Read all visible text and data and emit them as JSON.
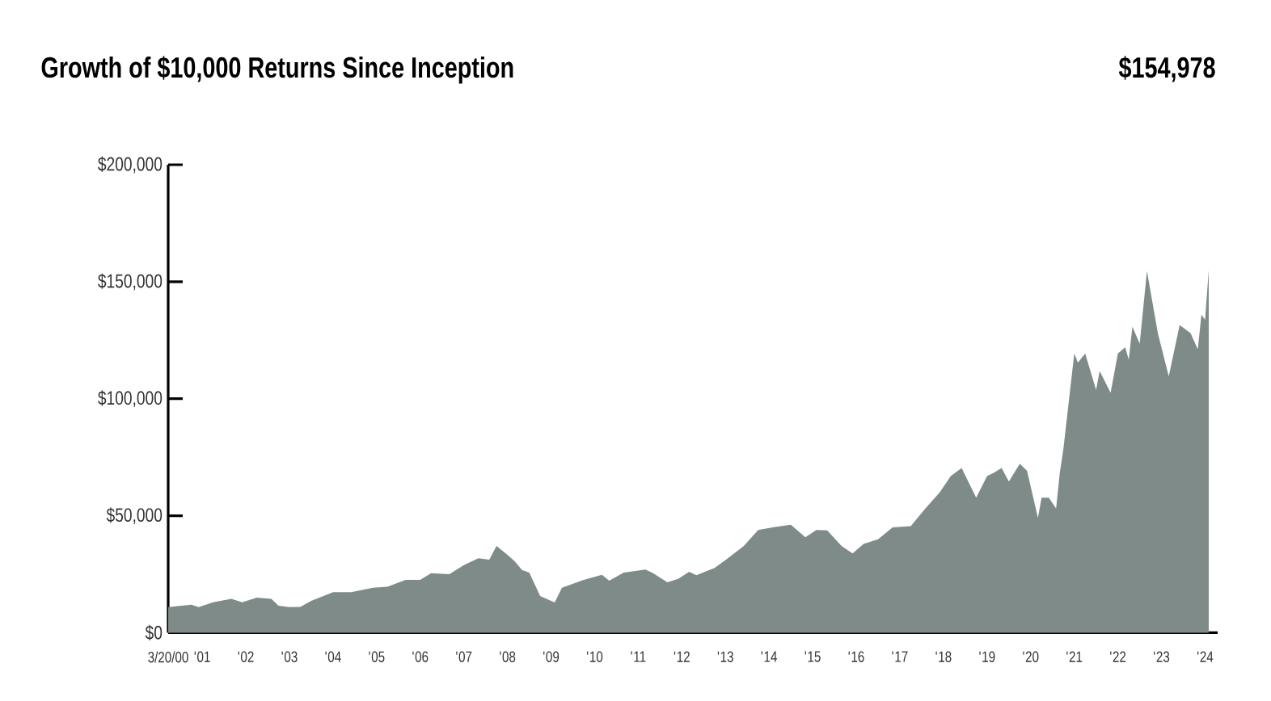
{
  "chart_data": {
    "type": "area",
    "title": "Growth of $10,000 Returns Since Inception",
    "annotations": [
      "$154,978"
    ],
    "x": [
      "2000-03-20",
      "2000-10",
      "2000-12",
      "2001-04",
      "2001-09",
      "2001-12",
      "2002-04",
      "2002-08",
      "2002-10",
      "2003-01",
      "2003-04",
      "2003-07",
      "2004-01",
      "2004-06",
      "2004-12",
      "2005-04",
      "2005-09",
      "2006-01",
      "2006-04",
      "2006-09",
      "2007-01",
      "2007-05",
      "2007-08",
      "2007-10",
      "2008-01",
      "2008-03",
      "2008-05",
      "2008-07",
      "2008-10",
      "2009-02",
      "2009-04",
      "2009-10",
      "2010-03",
      "2010-05",
      "2010-09",
      "2011-03",
      "2011-05",
      "2011-09",
      "2011-12",
      "2012-03",
      "2012-05",
      "2012-10",
      "2013-01",
      "2013-06",
      "2013-10",
      "2014-02",
      "2014-07",
      "2014-11",
      "2015-02",
      "2015-05",
      "2015-09",
      "2015-12",
      "2016-03",
      "2016-07",
      "2016-11",
      "2017-04",
      "2017-08",
      "2017-12",
      "2018-03",
      "2018-06",
      "2018-10",
      "2019-01",
      "2019-03",
      "2019-05",
      "2019-07",
      "2019-10",
      "2019-12",
      "2020-03",
      "2020-04",
      "2020-06",
      "2020-08",
      "2020-09",
      "2020-10",
      "2021-01",
      "2021-02",
      "2021-04",
      "2021-07",
      "2021-08",
      "2021-11",
      "2022-01",
      "2022-03",
      "2022-04",
      "2022-05",
      "2022-07",
      "2022-09",
      "2022-12",
      "2023-03",
      "2023-06",
      "2023-09",
      "2023-11",
      "2023-12",
      "2024-01",
      "2024-02"
    ],
    "values": [
      10900,
      12000,
      10900,
      13000,
      14500,
      13000,
      15000,
      14500,
      11500,
      10900,
      11000,
      13600,
      17300,
      17300,
      19200,
      19600,
      22600,
      22600,
      25400,
      25000,
      28900,
      31800,
      31200,
      37100,
      33300,
      30500,
      26800,
      25700,
      15700,
      12900,
      19200,
      22600,
      24700,
      22200,
      25700,
      27000,
      25500,
      21500,
      23000,
      26000,
      24600,
      27700,
      31000,
      37000,
      43900,
      45000,
      46100,
      40800,
      43900,
      43700,
      37000,
      33900,
      37900,
      39900,
      45000,
      45500,
      53000,
      60000,
      66900,
      70400,
      57700,
      66900,
      68500,
      70400,
      64600,
      72200,
      69200,
      49100,
      57700,
      57700,
      53000,
      68100,
      78500,
      119300,
      115400,
      119300,
      103800,
      111800,
      102600,
      119300,
      122000,
      116600,
      130800,
      123500,
      154600,
      128000,
      109600,
      131500,
      128000,
      121100,
      136000,
      133700,
      155000
    ],
    "color": "#7f8b89",
    "xlim": [
      "2000-03-20",
      "2024-04-15"
    ],
    "xticks": [
      {
        "value": "2000-03-20",
        "label": "3/20/00"
      },
      {
        "value": "2001-01",
        "label": "'01"
      },
      {
        "value": "2002-01",
        "label": "'02"
      },
      {
        "value": "2003-01",
        "label": "'03"
      },
      {
        "value": "2004-01",
        "label": "'04"
      },
      {
        "value": "2005-01",
        "label": "'05"
      },
      {
        "value": "2006-01",
        "label": "'06"
      },
      {
        "value": "2007-01",
        "label": "'07"
      },
      {
        "value": "2008-01",
        "label": "'08"
      },
      {
        "value": "2009-01",
        "label": "'09"
      },
      {
        "value": "2010-01",
        "label": "'10"
      },
      {
        "value": "2011-01",
        "label": "'11"
      },
      {
        "value": "2012-01",
        "label": "'12"
      },
      {
        "value": "2013-01",
        "label": "'13"
      },
      {
        "value": "2014-01",
        "label": "'14"
      },
      {
        "value": "2015-01",
        "label": "'15"
      },
      {
        "value": "2016-01",
        "label": "'16"
      },
      {
        "value": "2017-01",
        "label": "'17"
      },
      {
        "value": "2018-01",
        "label": "'18"
      },
      {
        "value": "2019-01",
        "label": "'19"
      },
      {
        "value": "2020-01",
        "label": "'20"
      },
      {
        "value": "2021-01",
        "label": "'21"
      },
      {
        "value": "2022-01",
        "label": "'22"
      },
      {
        "value": "2023-01",
        "label": "'23"
      },
      {
        "value": "2024-01",
        "label": "'24"
      }
    ],
    "ylim": [
      0,
      200000
    ],
    "yticks": [
      {
        "value": 0,
        "label": "$0"
      },
      {
        "value": 50000,
        "label": "$50,000"
      },
      {
        "value": 100000,
        "label": "$100,000"
      },
      {
        "value": 150000,
        "label": "$150,000"
      },
      {
        "value": 200000,
        "label": "$200,000"
      }
    ],
    "grid": false
  }
}
